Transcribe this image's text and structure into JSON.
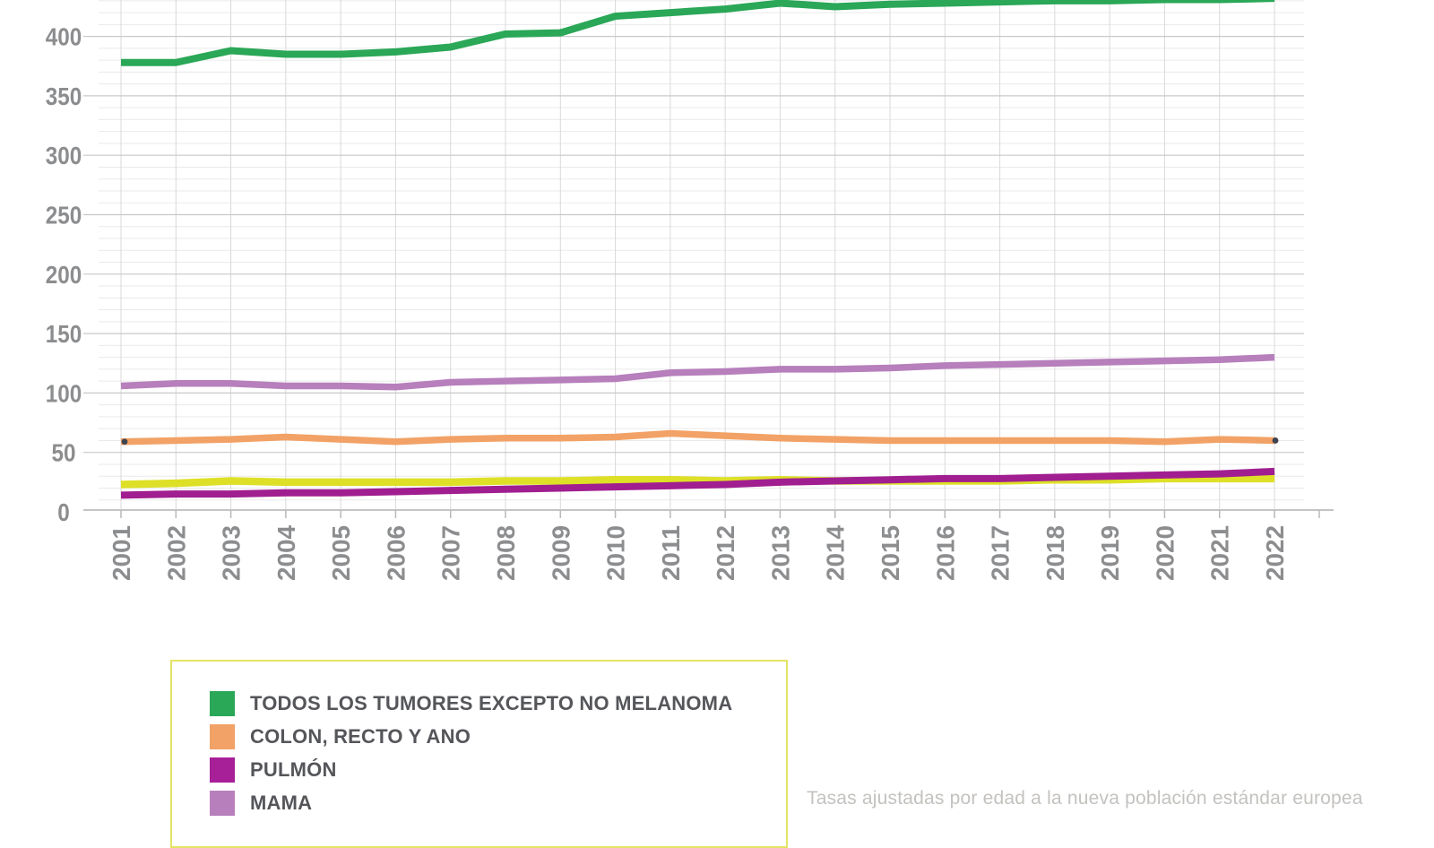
{
  "chart_data": {
    "type": "line",
    "title": "",
    "xlabel": "",
    "ylabel": "",
    "x": [
      2001,
      2002,
      2003,
      2004,
      2005,
      2006,
      2007,
      2008,
      2009,
      2010,
      2011,
      2012,
      2013,
      2014,
      2015,
      2016,
      2017,
      2018,
      2019,
      2020,
      2021,
      2022
    ],
    "y_ticks": [
      0,
      50,
      100,
      150,
      200,
      250,
      300,
      350,
      400
    ],
    "y_minor_step": 10,
    "visible_y_top": 430,
    "grid": true,
    "legend_position": "bottom-left",
    "series": [
      {
        "name": "TODOS LOS TUMORES EXCEPTO NO MELANOMA",
        "color": "#2aa757",
        "values": [
          378,
          378,
          388,
          385,
          385,
          387,
          391,
          402,
          403,
          417,
          420,
          423,
          428,
          425,
          427,
          428,
          429,
          430,
          430,
          431,
          431,
          432
        ]
      },
      {
        "name": "COLON, RECTO Y ANO",
        "color": "#f2a266",
        "endpoint_dots": true,
        "values": [
          59,
          60,
          61,
          63,
          61,
          59,
          61,
          62,
          62,
          63,
          66,
          64,
          62,
          61,
          60,
          60,
          60,
          60,
          60,
          59,
          61,
          60
        ]
      },
      {
        "name": "PULMÓN",
        "color": "#a01e90",
        "values": [
          14,
          15,
          15,
          16,
          16,
          17,
          18,
          19,
          20,
          21,
          22,
          23,
          25,
          26,
          27,
          28,
          28,
          29,
          30,
          31,
          32,
          34
        ]
      },
      {
        "name": "MAMA",
        "color": "#b77fbc",
        "values": [
          106,
          108,
          108,
          106,
          106,
          105,
          109,
          110,
          111,
          112,
          117,
          118,
          120,
          120,
          121,
          123,
          124,
          125,
          126,
          127,
          128,
          130
        ]
      },
      {
        "name": "",
        "color": "#dde026",
        "values": [
          23,
          24,
          26,
          25,
          25,
          25,
          25,
          26,
          26,
          27,
          27,
          26,
          27,
          26,
          26,
          26,
          26,
          27,
          27,
          28,
          28,
          28
        ]
      }
    ]
  },
  "legend": {
    "items": [
      {
        "label": "TODOS LOS TUMORES EXCEPTO NO MELANOMA",
        "color": "#2aa757"
      },
      {
        "label": "COLON, RECTO Y ANO",
        "color": "#f2a266"
      },
      {
        "label": "PULMÓN",
        "color": "#a82098"
      },
      {
        "label": "MAMA",
        "color": "#b77fbc"
      }
    ]
  },
  "footnote": "Tasas ajustadas por edad a la nueva población estándar europea",
  "colors": {
    "background": "#ffffff",
    "grid_minor": "#eaeaea",
    "grid_major": "#c9c9c9",
    "grid_vertical": "#d9d9d9",
    "axis_line": "#c4c4c4",
    "tick": "#b9b9b9",
    "axis_text": "#8c8d8f",
    "legend_border": "#e3e464",
    "legend_text": "#55565a",
    "footnote_text": "#c4c2bf",
    "endpoint_dot": "#3d4450"
  }
}
